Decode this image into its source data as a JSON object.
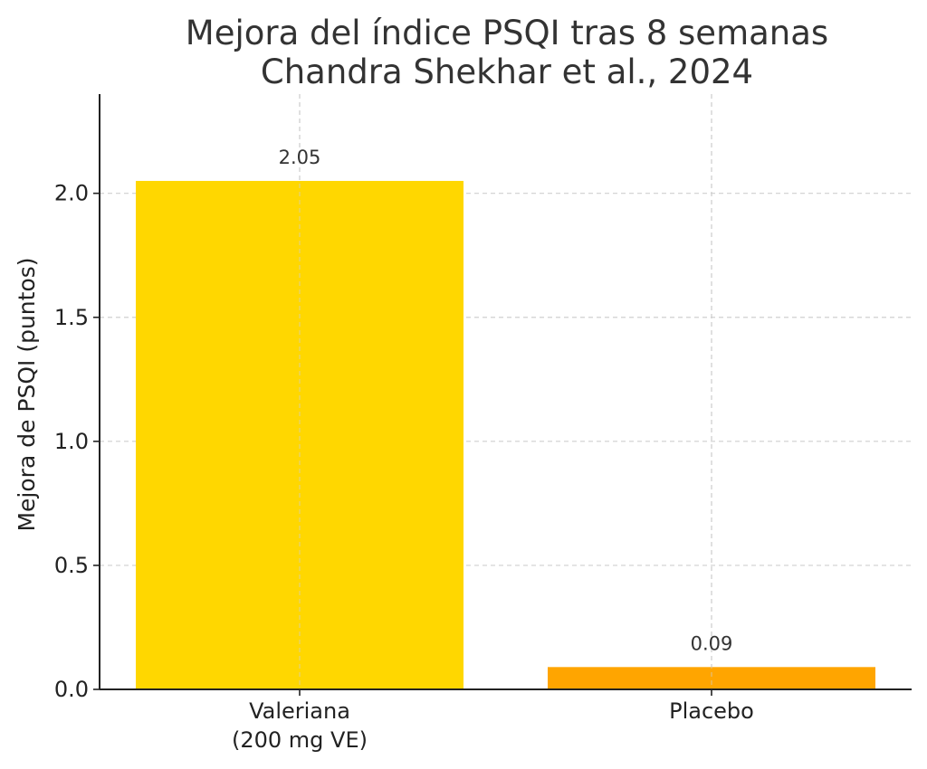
{
  "chart_data": {
    "type": "bar",
    "title": "Mejora del índice PSQI tras 8 semanas",
    "subtitle": "Chandra Shekhar et al., 2024",
    "xlabel": "",
    "ylabel": "Mejora de PSQI (puntos)",
    "categories": [
      "Valeriana\n(200 mg VE)",
      "Placebo"
    ],
    "values": [
      2.05,
      0.09
    ],
    "data_labels": [
      "2.05",
      "0.09"
    ],
    "colors": [
      "#FFD700",
      "#FFA500"
    ],
    "ylim": [
      0,
      2.4
    ],
    "yticks": [
      0.0,
      0.5,
      1.0,
      1.5,
      2.0
    ],
    "ytick_labels": [
      "0.0",
      "0.5",
      "1.0",
      "1.5",
      "2.0"
    ],
    "grid": true,
    "legend": "none"
  }
}
